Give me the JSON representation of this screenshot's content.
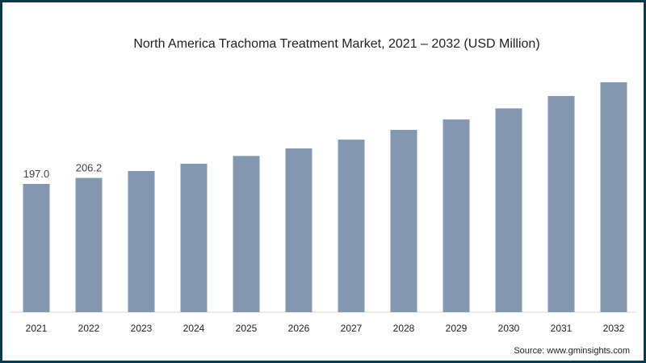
{
  "chart_data": {
    "type": "bar",
    "title": "North America Trachoma Treatment Market, 2021 – 2032 (USD Million)",
    "xlabel": "",
    "ylabel": "",
    "categories": [
      "2021",
      "2022",
      "2023",
      "2024",
      "2025",
      "2026",
      "2027",
      "2028",
      "2029",
      "2030",
      "2031",
      "2032"
    ],
    "values": [
      197.0,
      206.2,
      216.8,
      228.0,
      240.0,
      251.5,
      265.0,
      280.0,
      296.0,
      313.0,
      332.0,
      353.0
    ],
    "data_labels": {
      "0": "197.0",
      "1": "206.2"
    },
    "ylim": [
      0,
      360
    ],
    "grid": false,
    "bar_color": "#8497b0",
    "source": "Source: www.gminsights.com"
  }
}
